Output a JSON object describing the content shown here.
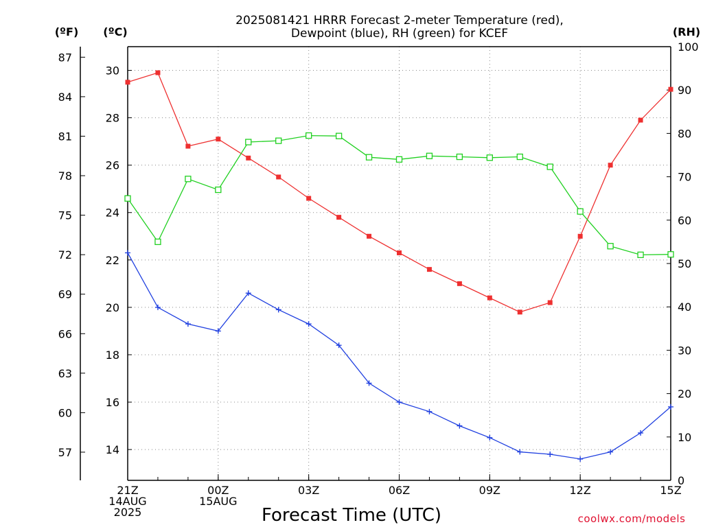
{
  "chart_data": {
    "type": "line",
    "title_line1": "2025081421 HRRR Forecast 2-meter Temperature (red),",
    "title_line2": "Dewpoint (blue), RH (green) for KCEF",
    "xlabel": "Forecast Time (UTC)",
    "credit": "coolwx.com/models",
    "unit_labels": {
      "fahrenheit": "(ºF)",
      "celsius": "(ºC)",
      "rh": "(RH)"
    },
    "x_hours": [
      0,
      1,
      2,
      3,
      4,
      5,
      6,
      7,
      8,
      9,
      10,
      11,
      12,
      13,
      14,
      15,
      16,
      17,
      18
    ],
    "x_ticks": [
      {
        "hour": 0,
        "lines": [
          "21Z",
          "14AUG",
          "2025"
        ]
      },
      {
        "hour": 3,
        "lines": [
          "00Z",
          "15AUG"
        ]
      },
      {
        "hour": 6,
        "lines": [
          "03Z"
        ]
      },
      {
        "hour": 9,
        "lines": [
          "06Z"
        ]
      },
      {
        "hour": 12,
        "lines": [
          "09Z"
        ]
      },
      {
        "hour": 15,
        "lines": [
          "12Z"
        ]
      },
      {
        "hour": 18,
        "lines": [
          "15Z"
        ]
      }
    ],
    "ylim_celsius": [
      12.7,
      31.0
    ],
    "ylim_rh": [
      0,
      100
    ],
    "celsius_ticks": [
      14,
      16,
      18,
      20,
      22,
      24,
      26,
      28,
      30
    ],
    "fahrenheit_ticks": [
      57,
      60,
      63,
      66,
      69,
      72,
      75,
      78,
      81,
      84,
      87
    ],
    "rh_ticks": [
      0,
      10,
      20,
      30,
      40,
      50,
      60,
      70,
      80,
      90,
      100
    ],
    "grid": true,
    "series": [
      {
        "key": "temperature",
        "color": "#ee3030",
        "marker": "filled-square",
        "values": [
          29.5,
          29.9,
          26.8,
          27.1,
          26.3,
          25.5,
          24.6,
          23.8,
          23.0,
          22.3,
          21.6,
          21.0,
          20.4,
          19.8,
          20.2,
          23.0,
          26.0,
          27.9,
          29.2
        ]
      },
      {
        "key": "dewpoint",
        "color": "#2040e0",
        "marker": "plus",
        "values": [
          22.3,
          20.0,
          19.3,
          19.0,
          20.6,
          19.9,
          19.3,
          18.4,
          16.8,
          16.0,
          15.6,
          15.0,
          14.5,
          13.9,
          13.8,
          13.6,
          13.9,
          14.7,
          15.8
        ]
      },
      {
        "key": "rh",
        "color": "#20d020",
        "marker": "open-square",
        "values": [
          65,
          55,
          69.5,
          67,
          78,
          78.3,
          79.5,
          79.4,
          74.5,
          74,
          74.8,
          74.6,
          74.4,
          74.6,
          72.3,
          62,
          54,
          52,
          52.1
        ]
      }
    ]
  }
}
